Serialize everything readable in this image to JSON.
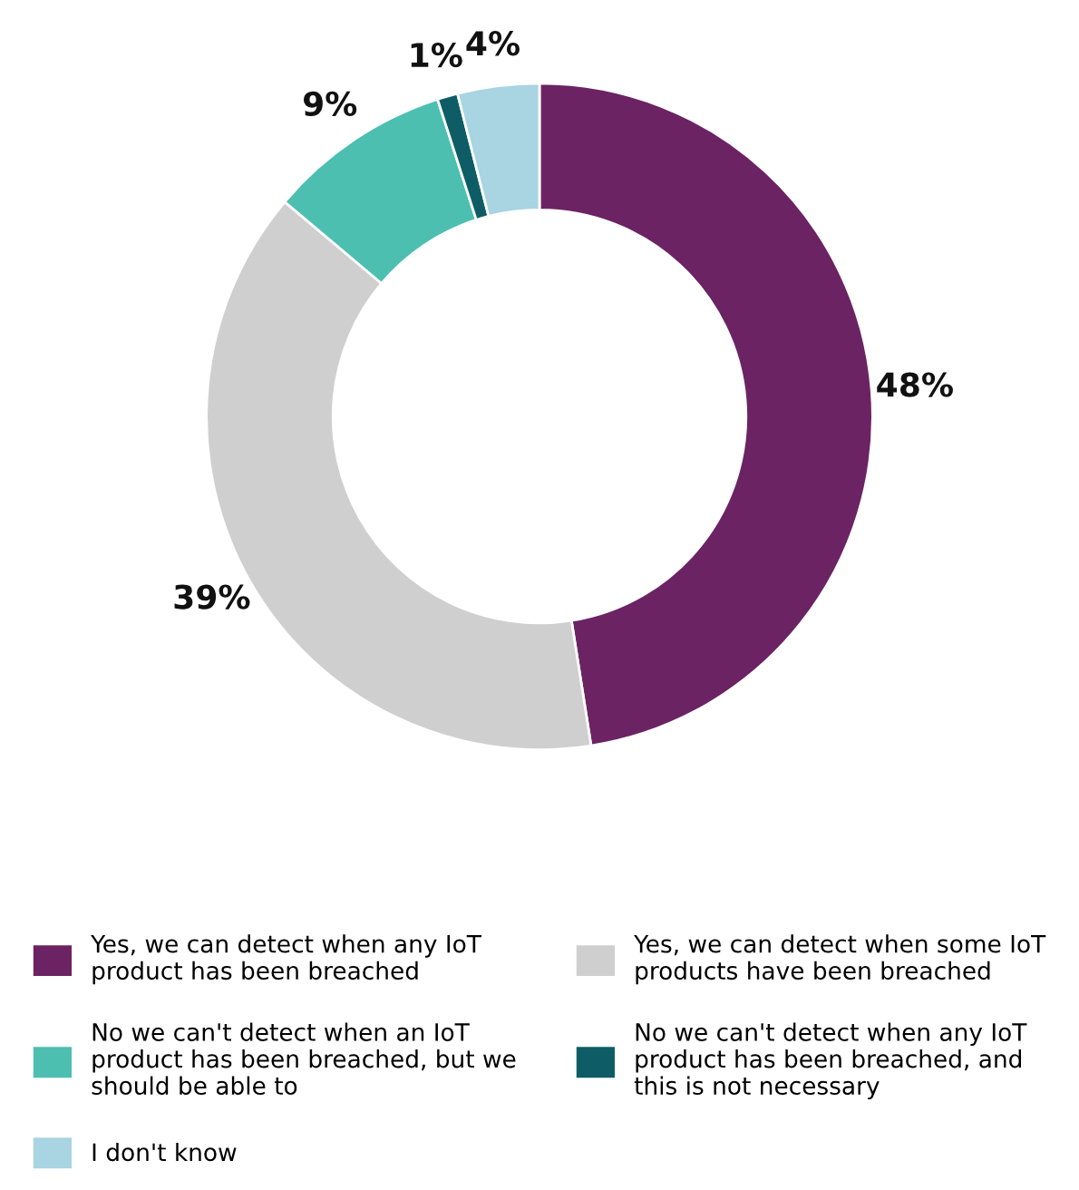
{
  "chart_data": {
    "type": "donut",
    "categories": [
      "Yes, we can detect when any IoT product has been breached",
      "Yes, we can detect when some IoT products have been breached",
      "No we can't detect when an IoT product has been breached, but we should be able to",
      "No we can't detect when any IoT product has been breached, and this is not necessary",
      "I don't know"
    ],
    "values": [
      48,
      39,
      9,
      1,
      4
    ],
    "value_labels": [
      "48%",
      "39%",
      "9%",
      "1%",
      "4%"
    ],
    "colors": [
      "#6b2363",
      "#cfcfcf",
      "#4cbfb1",
      "#0e5d66",
      "#a9d4e2"
    ],
    "legend": "bottom"
  }
}
